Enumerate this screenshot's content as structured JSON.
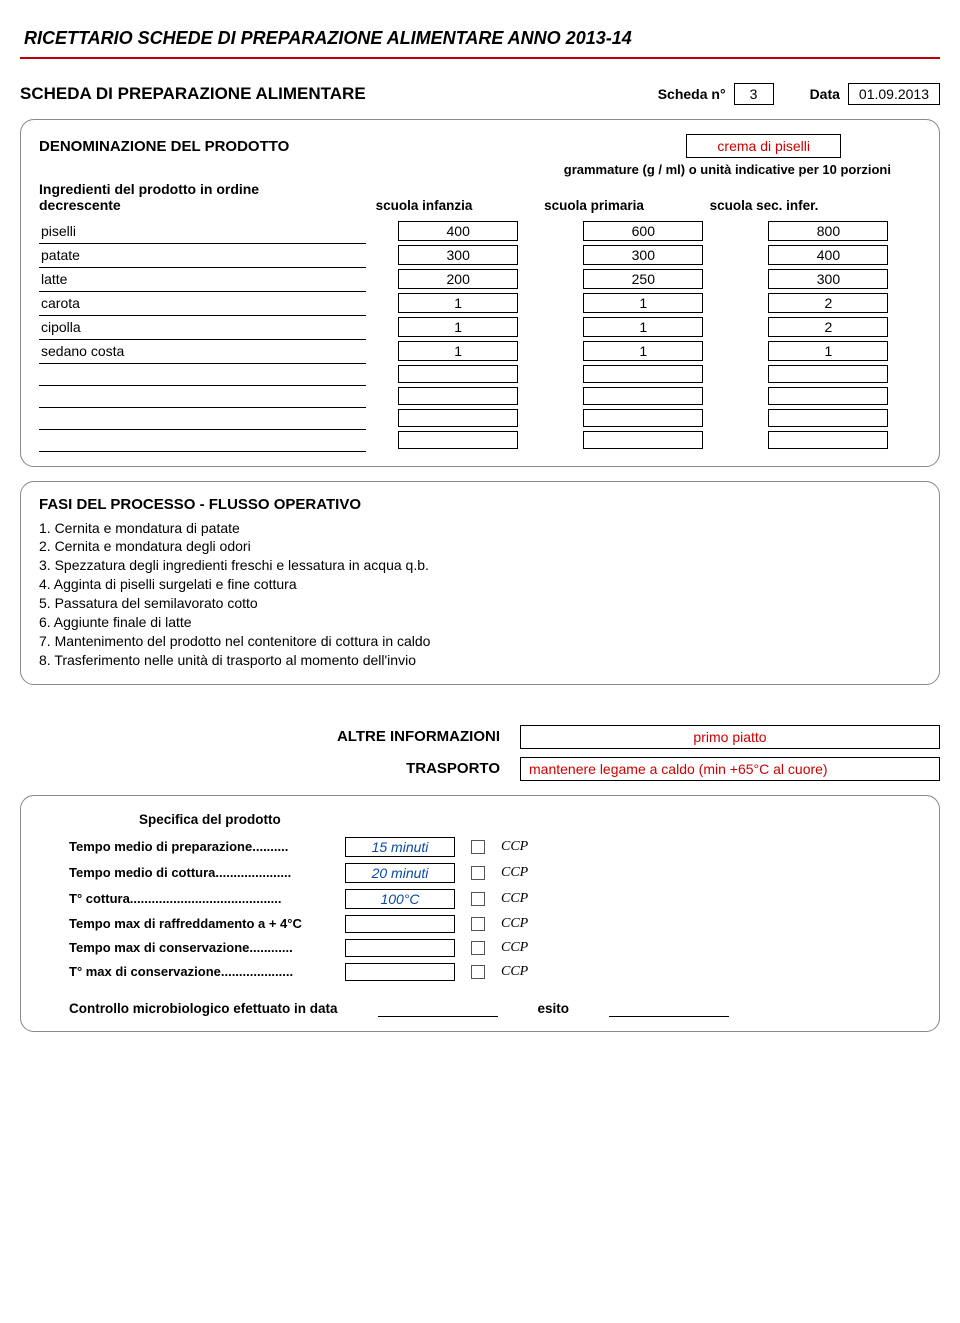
{
  "header": {
    "title": "RICETTARIO SCHEDE DI PREPARAZIONE ALIMENTARE ANNO 2013-14"
  },
  "scheda": {
    "title": "SCHEDA DI PREPARAZIONE ALIMENTARE",
    "scheda_n_label": "Scheda n°",
    "scheda_n": "3",
    "data_label": "Data",
    "data": "01.09.2013"
  },
  "denominazione": {
    "label": "DENOMINAZIONE DEL PRODOTTO",
    "valore": "crema di piselli",
    "grammature": "grammature (g / ml) o unità indicative per 10 porzioni",
    "ingredienti_label": "Ingredienti del prodotto in ordine decrescente",
    "col1": "scuola infanzia",
    "col2": "scuola primaria",
    "col3": "scuola sec. infer."
  },
  "ingredienti": [
    {
      "name": "piselli",
      "v1": "400",
      "v2": "600",
      "v3": "800"
    },
    {
      "name": "patate",
      "v1": "300",
      "v2": "300",
      "v3": "400"
    },
    {
      "name": "latte",
      "v1": "200",
      "v2": "250",
      "v3": "300"
    },
    {
      "name": "carota",
      "v1": "1",
      "v2": "1",
      "v3": "2"
    },
    {
      "name": "cipolla",
      "v1": "1",
      "v2": "1",
      "v3": "2"
    },
    {
      "name": "sedano costa",
      "v1": "1",
      "v2": "1",
      "v3": "1"
    },
    {
      "name": "",
      "v1": "",
      "v2": "",
      "v3": ""
    },
    {
      "name": "",
      "v1": "",
      "v2": "",
      "v3": ""
    },
    {
      "name": "",
      "v1": "",
      "v2": "",
      "v3": ""
    },
    {
      "name": "",
      "v1": "",
      "v2": "",
      "v3": ""
    }
  ],
  "fasi": {
    "title": "FASI DEL PROCESSO - FLUSSO OPERATIVO",
    "steps": [
      "1. Cernita e mondatura di patate",
      "2. Cernita e mondatura degli odori",
      "3. Spezzatura degli ingredienti freschi e lessatura in acqua q.b.",
      "4. Agginta di piselli surgelati e fine cottura",
      "5. Passatura del semilavorato cotto",
      "6. Aggiunte finale di latte",
      "7. Mantenimento del prodotto nel contenitore di cottura in caldo",
      "8. Trasferimento nelle unità di trasporto  al momento dell'invio"
    ]
  },
  "altre": {
    "label": "ALTRE INFORMAZIONI",
    "valore": "primo piatto",
    "trasporto_label": "TRASPORTO",
    "trasporto_valore": "mantenere legame a caldo (min +65°C al cuore)",
    "specifica_label": "Specifica del prodotto"
  },
  "specifiche": [
    {
      "label": "Tempo medio di preparazione..........",
      "val": "15 minuti",
      "ccp": "CCP"
    },
    {
      "label": "Tempo medio di cottura.....................",
      "val": "20 minuti",
      "ccp": "CCP"
    },
    {
      "label": "T° cottura..........................................",
      "val": "100°C",
      "ccp": "CCP"
    },
    {
      "label": "Tempo max di raffreddamento a + 4°C",
      "val": "",
      "ccp": "CCP"
    },
    {
      "label": "Tempo max di conservazione............",
      "val": "",
      "ccp": "CCP"
    },
    {
      "label": "T° max di conservazione....................",
      "val": "",
      "ccp": "CCP"
    }
  ],
  "controllo": {
    "label": "Controllo microbiologico efettuato in data",
    "esito_label": "esito"
  },
  "colors": {
    "accent_red": "#c00",
    "rule_red": "#b00",
    "link_blue": "#0a4aa8"
  }
}
